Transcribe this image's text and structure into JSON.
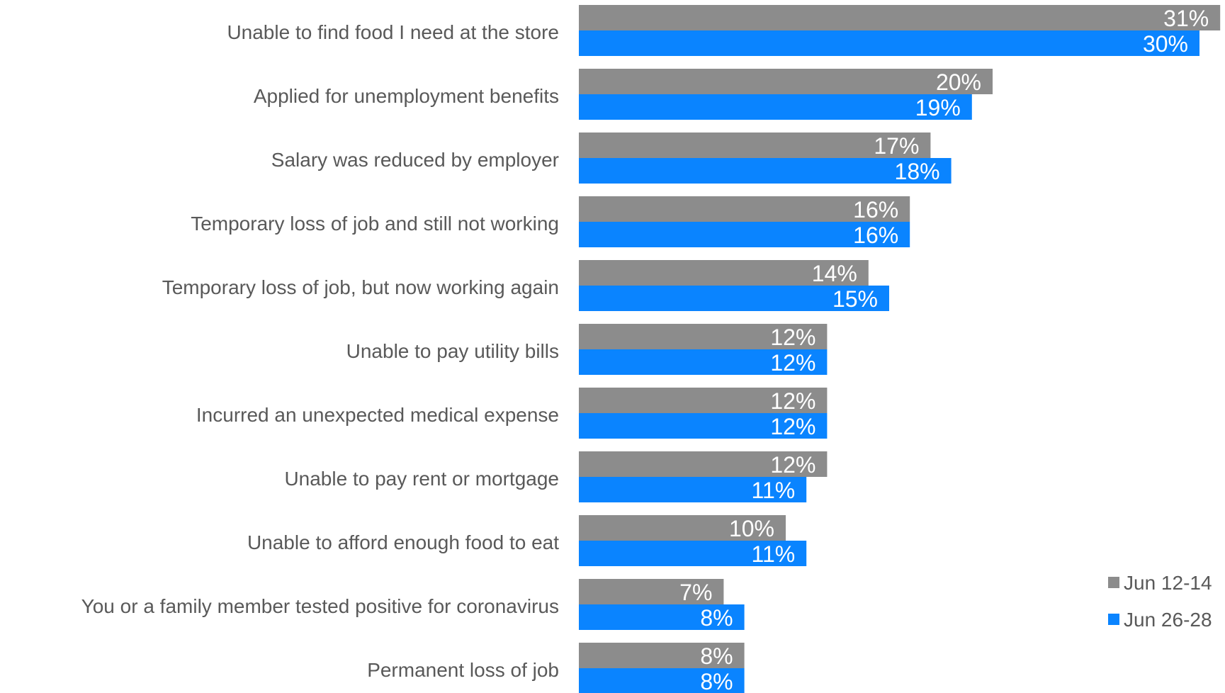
{
  "chart_data": {
    "type": "bar",
    "orientation": "horizontal",
    "categories": [
      "Unable to find food I need at the store",
      "Applied for unemployment benefits",
      "Salary was reduced by employer",
      "Temporary loss of job and still not working",
      "Temporary loss of job, but now working again",
      "Unable to pay utility bills",
      "Incurred an unexpected medical expense",
      "Unable to pay rent or mortgage",
      "Unable to afford enough food to eat",
      "You or a family member tested positive for coronavirus",
      "Permanent loss of job"
    ],
    "series": [
      {
        "name": "Jun 12-14",
        "color": "#8c8c8c",
        "values": [
          31,
          20,
          17,
          16,
          14,
          12,
          12,
          12,
          10,
          7,
          8
        ],
        "labels": [
          "31%",
          "20%",
          "17%",
          "16%",
          "14%",
          "12%",
          "12%",
          "12%",
          "10%",
          "7%",
          "8%"
        ]
      },
      {
        "name": "Jun 26-28",
        "color": "#0a84ff",
        "values": [
          30,
          19,
          18,
          16,
          15,
          12,
          12,
          11,
          11,
          8,
          8
        ],
        "labels": [
          "30%",
          "19%",
          "18%",
          "16%",
          "15%",
          "12%",
          "12%",
          "11%",
          "11%",
          "8%",
          "8%"
        ]
      }
    ],
    "xlim": [
      0,
      31
    ],
    "grid": false,
    "legend_position": "bottom-right",
    "data_labels": "inside-end"
  }
}
